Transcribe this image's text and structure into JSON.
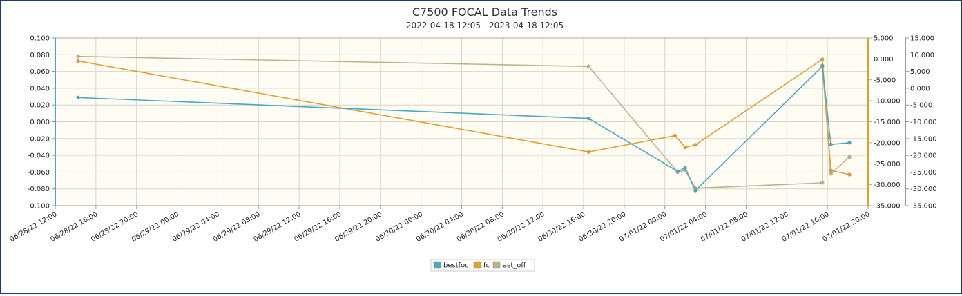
{
  "chart_data": {
    "type": "line",
    "title": "C7500 FOCAL Data Trends",
    "subtitle": "2022-04-18 12:05 - 2023-04-18 12:05",
    "colors": {
      "bestfoc": "#4aa8c0",
      "fc": "#e0a030",
      "ast_off": "#bdb38a",
      "plot_bg": "#fffdf3",
      "grid": "#d8d5c8",
      "left_axis": "#4aa8c0",
      "right_axis": "#e0a030",
      "far_right_axis": "#999999"
    },
    "x_axis": {
      "ticks": [
        "06/28/22 12:00",
        "06/28/22 16:00",
        "06/28/22 20:00",
        "06/29/22 00:00",
        "06/29/22 04:00",
        "06/29/22 08:00",
        "06/29/22 12:00",
        "06/29/22 16:00",
        "06/29/22 20:00",
        "06/30/22 00:00",
        "06/30/22 04:00",
        "06/30/22 08:00",
        "06/30/22 12:00",
        "06/30/22 16:00",
        "06/30/22 20:00",
        "07/01/22 00:00",
        "07/01/22 04:00",
        "07/01/22 08:00",
        "07/01/22 12:00",
        "07/01/22 16:00",
        "07/01/22 20:00"
      ],
      "range": [
        "06/28/22 12:00",
        "07/01/22 20:00"
      ]
    },
    "y_axes": [
      {
        "side": "left",
        "range": [
          -0.1,
          0.1
        ],
        "ticks": [
          "0.100",
          "0.080",
          "0.060",
          "0.040",
          "0.020",
          "0.000",
          "-0.020",
          "-0.040",
          "-0.060",
          "-0.080",
          "-0.100"
        ]
      },
      {
        "side": "right",
        "range": [
          -35,
          5
        ],
        "ticks": [
          "5.000",
          "0.000",
          "-5.000",
          "-10.000",
          "-15.000",
          "-20.000",
          "-25.000",
          "-30.000",
          "-35.000"
        ]
      },
      {
        "side": "far-right",
        "range": [
          -35,
          15
        ],
        "ticks": [
          "15.000",
          "10.000",
          "5.000",
          "0.000",
          "-5.000",
          "-10.000",
          "-15.000",
          "-20.000",
          "-25.000",
          "-30.000",
          "-35.000"
        ]
      }
    ],
    "grid": true,
    "legend": {
      "placement": "bottom-center",
      "entries": [
        "bestfoc",
        "fc",
        "ast_off"
      ]
    },
    "series": [
      {
        "name": "bestfoc",
        "axis": "left",
        "points": [
          [
            "06/28/22 14:15",
            0.029
          ],
          [
            "06/30/22 16:30",
            0.004
          ],
          [
            "07/01/22 01:15",
            -0.059
          ],
          [
            "07/01/22 02:00",
            -0.055
          ],
          [
            "07/01/22 03:00",
            -0.082
          ],
          [
            "07/01/22 15:30",
            0.066
          ],
          [
            "07/01/22 16:20",
            -0.027
          ],
          [
            "07/01/22 18:10",
            -0.025
          ]
        ]
      },
      {
        "name": "fc",
        "axis": "right",
        "points": [
          [
            "06/28/22 14:15",
            -0.5
          ],
          [
            "06/30/22 16:30",
            -22.2
          ],
          [
            "07/01/22 01:00",
            -18.3
          ],
          [
            "07/01/22 02:00",
            -21.1
          ],
          [
            "07/01/22 03:00",
            -20.5
          ],
          [
            "07/01/22 15:30",
            -0.1
          ],
          [
            "07/01/22 16:20",
            -26.6
          ],
          [
            "07/01/22 18:10",
            -27.6
          ]
        ]
      },
      {
        "name": "ast_off",
        "axis": "far-right",
        "points": [
          [
            "06/28/22 14:15",
            9.5
          ],
          [
            "06/30/22 16:30",
            6.5
          ],
          [
            "07/01/22 01:15",
            -25.0
          ],
          [
            "07/01/22 02:00",
            -24.5
          ],
          [
            "07/01/22 03:00",
            -29.8
          ],
          [
            "07/01/22 15:30",
            -28.2
          ],
          [
            "07/01/22 15:30",
            6.8
          ],
          [
            "07/01/22 16:20",
            -25.5
          ],
          [
            "07/01/22 18:10",
            -20.5
          ]
        ]
      }
    ]
  }
}
